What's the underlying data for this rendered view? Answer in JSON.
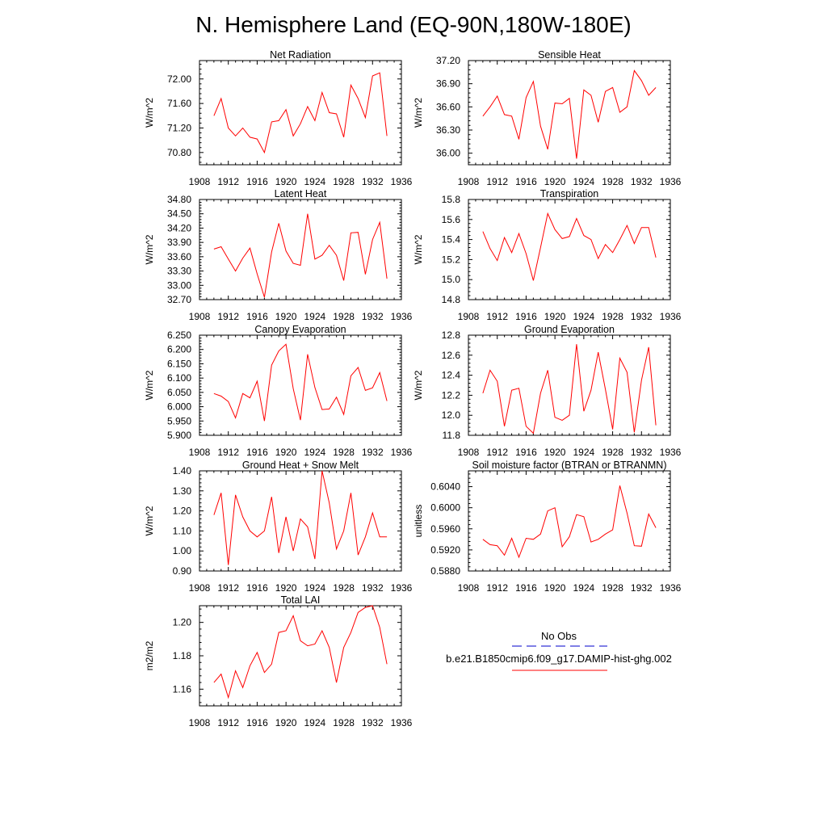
{
  "figure": {
    "title": "N. Hemisphere Land (EQ-90N,180W-180E)"
  },
  "colors": {
    "model_line": "#ff0000",
    "obs_line": "#0000cc",
    "axes": "#000000"
  },
  "legend": {
    "obs_label": "No Obs",
    "model_label": "b.e21.B1850cmip6.f09_g17.DAMIP-hist-ghg.002"
  },
  "chart_data": [
    {
      "type": "line",
      "title": "Net Radiation",
      "ylabel": "W/m^2",
      "xlim": [
        1908,
        1936
      ],
      "ylim": [
        70.6,
        72.3
      ],
      "xticks": [
        "1908",
        "1912",
        "1916",
        "1920",
        "1924",
        "1928",
        "1932",
        "1936"
      ],
      "yticks": [
        "70.80",
        "71.20",
        "71.60",
        "72.00"
      ],
      "x": [
        1910,
        1911,
        1912,
        1913,
        1914,
        1915,
        1916,
        1917,
        1918,
        1919,
        1920,
        1921,
        1922,
        1923,
        1924,
        1925,
        1926,
        1927,
        1928,
        1929,
        1930,
        1931,
        1932,
        1933,
        1934
      ],
      "series": [
        {
          "values": [
            71.4,
            71.68,
            71.2,
            71.07,
            71.2,
            71.05,
            71.02,
            70.8,
            71.3,
            71.32,
            71.5,
            71.07,
            71.27,
            71.55,
            71.32,
            71.78,
            71.45,
            71.43,
            71.05,
            71.9,
            71.68,
            71.37,
            72.05,
            72.1,
            71.07
          ]
        }
      ]
    },
    {
      "type": "line",
      "title": "Sensible Heat",
      "ylabel": "W/m^2",
      "xlim": [
        1908,
        1936
      ],
      "ylim": [
        35.85,
        37.2
      ],
      "xticks": [
        "1908",
        "1912",
        "1916",
        "1920",
        "1924",
        "1928",
        "1932",
        "1936"
      ],
      "yticks": [
        "36.00",
        "36.30",
        "36.60",
        "36.90",
        "37.20"
      ],
      "x": [
        1910,
        1911,
        1912,
        1913,
        1914,
        1915,
        1916,
        1917,
        1918,
        1919,
        1920,
        1921,
        1922,
        1923,
        1924,
        1925,
        1926,
        1927,
        1928,
        1929,
        1930,
        1931,
        1932,
        1933,
        1934
      ],
      "series": [
        {
          "values": [
            36.48,
            36.6,
            36.74,
            36.5,
            36.48,
            36.18,
            36.72,
            36.93,
            36.35,
            36.05,
            36.65,
            36.64,
            36.71,
            35.93,
            36.82,
            36.75,
            36.4,
            36.8,
            36.85,
            36.53,
            36.6,
            37.07,
            36.94,
            36.75,
            36.85
          ]
        }
      ]
    },
    {
      "type": "line",
      "title": "Latent Heat",
      "ylabel": "W/m^2",
      "xlim": [
        1908,
        1936
      ],
      "ylim": [
        32.7,
        34.8
      ],
      "xticks": [
        "1908",
        "1912",
        "1916",
        "1920",
        "1924",
        "1928",
        "1932",
        "1936"
      ],
      "yticks": [
        "32.70",
        "33.00",
        "33.30",
        "33.60",
        "33.90",
        "34.20",
        "34.50",
        "34.80"
      ],
      "x": [
        1910,
        1911,
        1912,
        1913,
        1914,
        1915,
        1916,
        1917,
        1918,
        1919,
        1920,
        1921,
        1922,
        1923,
        1924,
        1925,
        1926,
        1927,
        1928,
        1929,
        1930,
        1931,
        1932,
        1933,
        1934
      ],
      "series": [
        {
          "values": [
            33.76,
            33.81,
            33.55,
            33.3,
            33.57,
            33.78,
            33.24,
            32.75,
            33.7,
            34.3,
            33.72,
            33.46,
            33.42,
            34.5,
            33.55,
            33.63,
            33.84,
            33.63,
            33.1,
            34.1,
            34.11,
            33.23,
            33.96,
            34.32,
            33.14
          ]
        }
      ]
    },
    {
      "type": "line",
      "title": "Transpiration",
      "ylabel": "W/m^2",
      "xlim": [
        1908,
        1936
      ],
      "ylim": [
        14.8,
        15.8
      ],
      "xticks": [
        "1908",
        "1912",
        "1916",
        "1920",
        "1924",
        "1928",
        "1932",
        "1936"
      ],
      "yticks": [
        "14.8",
        "15.0",
        "15.2",
        "15.4",
        "15.6",
        "15.8"
      ],
      "x": [
        1910,
        1911,
        1912,
        1913,
        1914,
        1915,
        1916,
        1917,
        1918,
        1919,
        1920,
        1921,
        1922,
        1923,
        1924,
        1925,
        1926,
        1927,
        1928,
        1929,
        1930,
        1931,
        1932,
        1933,
        1934
      ],
      "series": [
        {
          "values": [
            15.48,
            15.31,
            15.19,
            15.42,
            15.27,
            15.46,
            15.26,
            14.99,
            15.32,
            15.66,
            15.5,
            15.41,
            15.43,
            15.61,
            15.44,
            15.4,
            15.21,
            15.35,
            15.27,
            15.4,
            15.54,
            15.36,
            15.52,
            15.52,
            15.22
          ]
        }
      ]
    },
    {
      "type": "line",
      "title": "Canopy Evaporation",
      "ylabel": "W/m^2",
      "xlim": [
        1908,
        1936
      ],
      "ylim": [
        5.9,
        6.25
      ],
      "xticks": [
        "1908",
        "1912",
        "1916",
        "1920",
        "1924",
        "1928",
        "1932",
        "1936"
      ],
      "yticks": [
        "5.900",
        "5.950",
        "6.000",
        "6.050",
        "6.100",
        "6.150",
        "6.200",
        "6.250"
      ],
      "x": [
        1910,
        1911,
        1912,
        1913,
        1914,
        1915,
        1916,
        1917,
        1918,
        1919,
        1920,
        1921,
        1922,
        1923,
        1924,
        1925,
        1926,
        1927,
        1928,
        1929,
        1930,
        1931,
        1932,
        1933,
        1934
      ],
      "series": [
        {
          "values": [
            6.046,
            6.037,
            6.018,
            5.961,
            6.046,
            6.031,
            6.089,
            5.95,
            6.145,
            6.195,
            6.218,
            6.063,
            5.953,
            6.183,
            6.067,
            5.99,
            5.992,
            6.033,
            5.973,
            6.108,
            6.137,
            6.057,
            6.066,
            6.119,
            6.02
          ]
        }
      ]
    },
    {
      "type": "line",
      "title": "Ground Evaporation",
      "ylabel": "W/m^2",
      "xlim": [
        1908,
        1936
      ],
      "ylim": [
        11.8,
        12.8
      ],
      "xticks": [
        "1908",
        "1912",
        "1916",
        "1920",
        "1924",
        "1928",
        "1932",
        "1936"
      ],
      "yticks": [
        "11.8",
        "12.0",
        "12.2",
        "12.4",
        "12.6",
        "12.8"
      ],
      "x": [
        1910,
        1911,
        1912,
        1913,
        1914,
        1915,
        1916,
        1917,
        1918,
        1919,
        1920,
        1921,
        1922,
        1923,
        1924,
        1925,
        1926,
        1927,
        1928,
        1929,
        1930,
        1931,
        1932,
        1933,
        1934
      ],
      "series": [
        {
          "values": [
            12.22,
            12.45,
            12.34,
            11.89,
            12.25,
            12.27,
            11.89,
            11.82,
            12.22,
            12.45,
            11.98,
            11.95,
            12.0,
            12.71,
            12.04,
            12.25,
            12.63,
            12.26,
            11.86,
            12.57,
            12.43,
            11.83,
            12.35,
            12.68,
            11.9
          ]
        }
      ]
    },
    {
      "type": "line",
      "title": "Ground Heat + Snow Melt",
      "ylabel": "W/m^2",
      "xlim": [
        1908,
        1936
      ],
      "ylim": [
        0.9,
        1.4
      ],
      "xticks": [
        "1908",
        "1912",
        "1916",
        "1920",
        "1924",
        "1928",
        "1932",
        "1936"
      ],
      "yticks": [
        "0.90",
        "1.00",
        "1.10",
        "1.20",
        "1.30",
        "1.40"
      ],
      "x": [
        1910,
        1911,
        1912,
        1913,
        1914,
        1915,
        1916,
        1917,
        1918,
        1919,
        1920,
        1921,
        1922,
        1923,
        1924,
        1925,
        1926,
        1927,
        1928,
        1929,
        1930,
        1931,
        1932,
        1933,
        1934
      ],
      "series": [
        {
          "values": [
            1.18,
            1.29,
            0.93,
            1.28,
            1.17,
            1.1,
            1.07,
            1.1,
            1.27,
            0.99,
            1.17,
            1.0,
            1.16,
            1.12,
            0.96,
            1.4,
            1.24,
            1.01,
            1.1,
            1.29,
            0.98,
            1.07,
            1.19,
            1.07,
            1.07
          ]
        }
      ]
    },
    {
      "type": "line",
      "title": "Soil moisture factor (BTRAN or BTRANMN)",
      "ylabel": "unitless",
      "xlim": [
        1908,
        1936
      ],
      "ylim": [
        0.588,
        0.607
      ],
      "xticks": [
        "1908",
        "1912",
        "1916",
        "1920",
        "1924",
        "1928",
        "1932",
        "1936"
      ],
      "yticks": [
        "0.5880",
        "0.5920",
        "0.5960",
        "0.6000",
        "0.6040"
      ],
      "x": [
        1910,
        1911,
        1912,
        1913,
        1914,
        1915,
        1916,
        1917,
        1918,
        1919,
        1920,
        1921,
        1922,
        1923,
        1924,
        1925,
        1926,
        1927,
        1928,
        1929,
        1930,
        1931,
        1932,
        1933,
        1934
      ],
      "series": [
        {
          "values": [
            0.594,
            0.593,
            0.5928,
            0.591,
            0.5942,
            0.5906,
            0.5942,
            0.594,
            0.595,
            0.5994,
            0.6,
            0.5926,
            0.5945,
            0.5987,
            0.5983,
            0.5935,
            0.594,
            0.595,
            0.5958,
            0.6042,
            0.599,
            0.5928,
            0.5927,
            0.5988,
            0.5962
          ]
        }
      ]
    },
    {
      "type": "line",
      "title": "Total LAI",
      "ylabel": "m2/m2",
      "xlim": [
        1908,
        1936
      ],
      "ylim": [
        1.15,
        1.21
      ],
      "xticks": [
        "1908",
        "1912",
        "1916",
        "1920",
        "1924",
        "1928",
        "1932",
        "1936"
      ],
      "yticks": [
        "1.16",
        "1.18",
        "1.20"
      ],
      "x": [
        1910,
        1911,
        1912,
        1913,
        1914,
        1915,
        1916,
        1917,
        1918,
        1919,
        1920,
        1921,
        1922,
        1923,
        1924,
        1925,
        1926,
        1927,
        1928,
        1929,
        1930,
        1931,
        1932,
        1933,
        1934
      ],
      "series": [
        {
          "values": [
            1.164,
            1.169,
            1.155,
            1.171,
            1.161,
            1.174,
            1.182,
            1.17,
            1.175,
            1.194,
            1.195,
            1.204,
            1.189,
            1.186,
            1.187,
            1.195,
            1.185,
            1.164,
            1.185,
            1.194,
            1.206,
            1.209,
            1.21,
            1.197,
            1.175
          ]
        }
      ]
    }
  ]
}
